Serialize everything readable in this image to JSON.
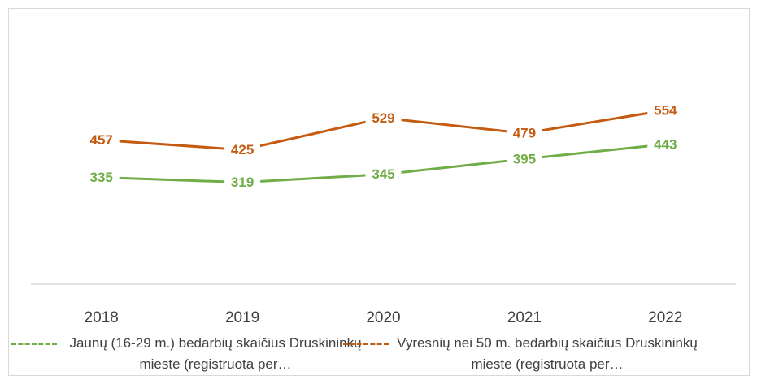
{
  "chart_data": {
    "type": "line",
    "categories": [
      "2018",
      "2019",
      "2020",
      "2021",
      "2022"
    ],
    "series": [
      {
        "name": "Jaunų (16-29 m.) bedarbių skaičius Druskininkų mieste (registruota per…",
        "color": "#70ad47",
        "values": [
          335,
          319,
          345,
          395,
          443
        ]
      },
      {
        "name": "Vyresnių nei 50 m. bedarbių skaičius Druskininkų mieste (registruota per…",
        "color": "#c55a11",
        "values": [
          457,
          425,
          529,
          479,
          554
        ]
      }
    ],
    "ylim": [
      0,
      800
    ],
    "legend": "bottom"
  }
}
